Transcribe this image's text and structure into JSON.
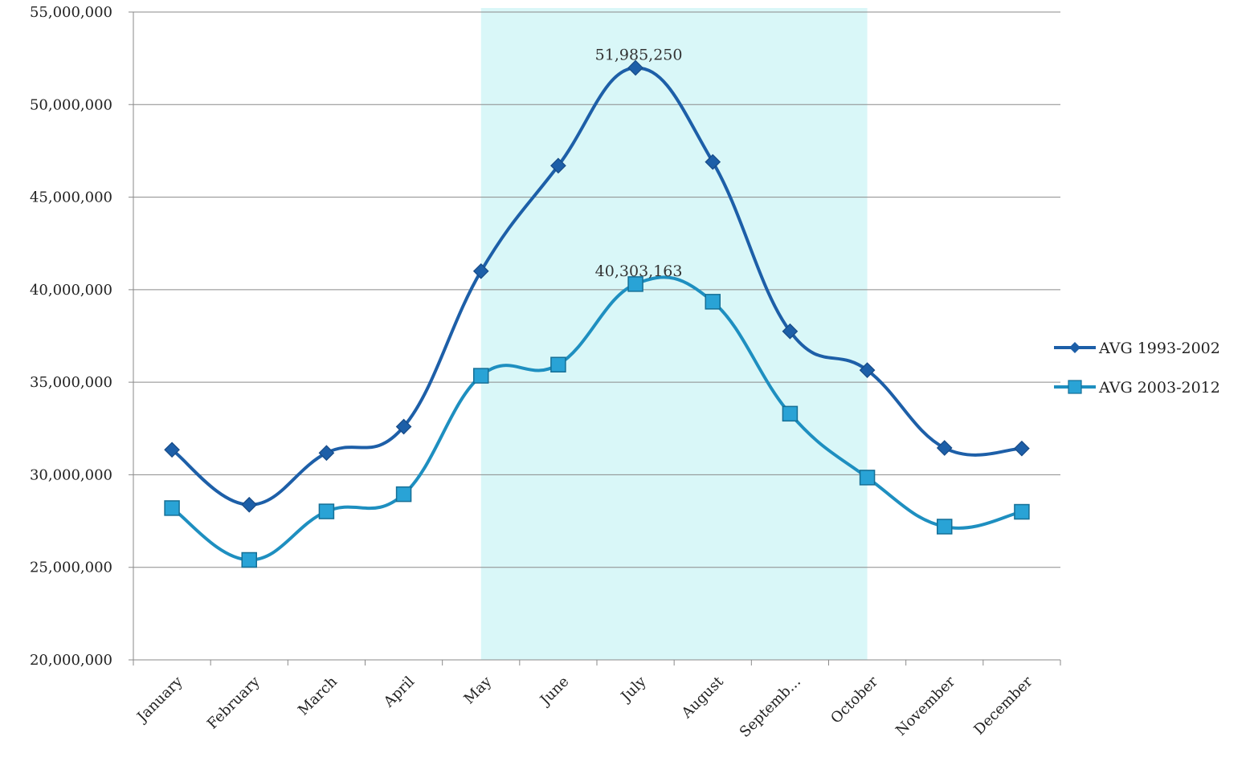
{
  "chart_data": {
    "type": "line",
    "smooth": true,
    "categories": [
      "January",
      "February",
      "March",
      "April",
      "May",
      "June",
      "July",
      "August",
      "Septemb...",
      "October",
      "November",
      "December"
    ],
    "ylim": [
      20000000,
      55000000
    ],
    "yticks": [
      20000000,
      25000000,
      30000000,
      35000000,
      40000000,
      45000000,
      50000000,
      55000000
    ],
    "ytick_labels": [
      "20,000,000",
      "25,000,000",
      "30,000,000",
      "35,000,000",
      "40,000,000",
      "45,000,000",
      "50,000,000",
      "55,000,000"
    ],
    "grid": true,
    "legend_position": "right",
    "highlight_band": {
      "from": "May",
      "to": "October",
      "color": "#d9f7f8"
    },
    "series": [
      {
        "name": "AVG 1993-2002",
        "marker": "diamond",
        "color": "#1d5fa8",
        "values": [
          31350000,
          28380000,
          31180000,
          32600000,
          41000000,
          46700000,
          51985250,
          46900000,
          37750000,
          35650000,
          31450000,
          31420000
        ]
      },
      {
        "name": "AVG 2003-2012",
        "marker": "square",
        "color": "#1e8fc0",
        "values": [
          28200000,
          25400000,
          28020000,
          28950000,
          35350000,
          35950000,
          40303163,
          39350000,
          33300000,
          29850000,
          27200000,
          28000000
        ]
      }
    ],
    "annotations": [
      {
        "series": 0,
        "index": 6,
        "text": "51,985,250"
      },
      {
        "series": 1,
        "index": 6,
        "text": "40,303,163"
      }
    ]
  }
}
